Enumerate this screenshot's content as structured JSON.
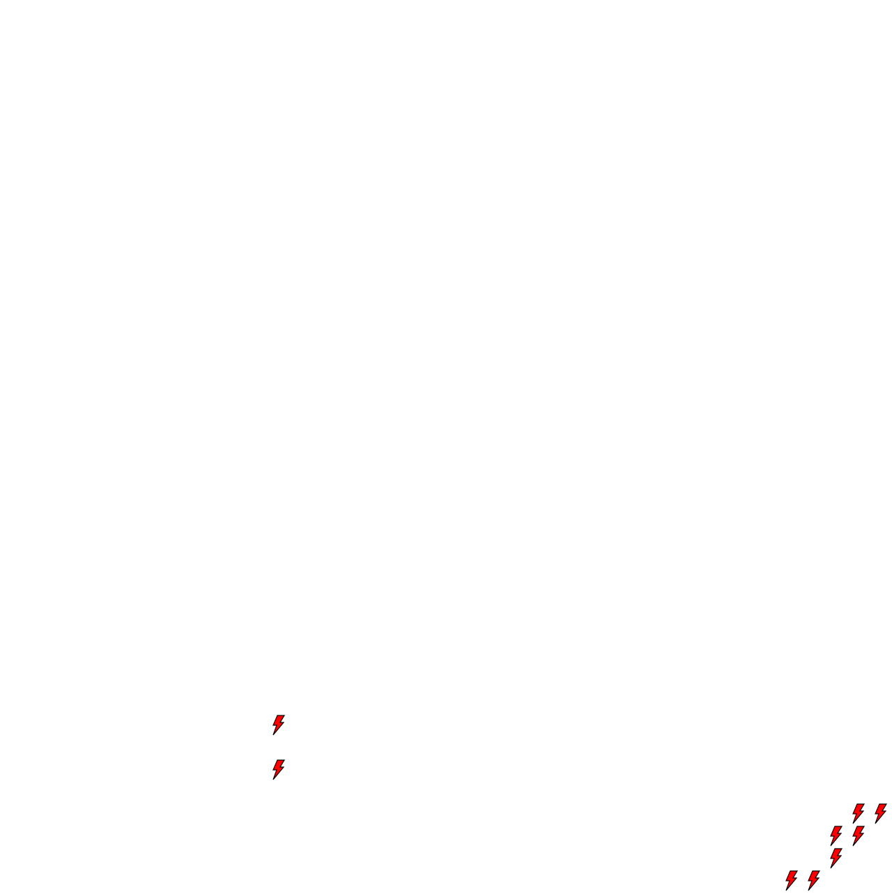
{
  "canvas": {
    "background": "#ffffff"
  },
  "markers": {
    "icon": "lightning-bolt-icon",
    "fill_color": "#ff0000",
    "stroke_color": "#000000",
    "count": 9
  }
}
